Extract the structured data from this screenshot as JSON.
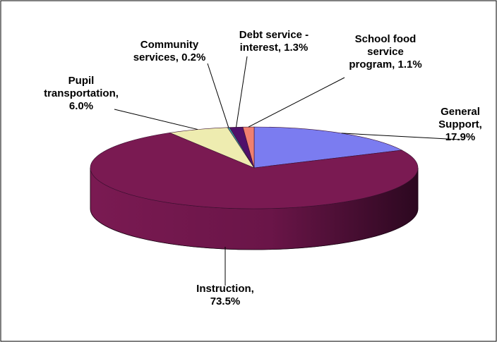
{
  "chart_data": {
    "type": "pie",
    "title": "",
    "slices": [
      {
        "label_lines": [
          "General",
          "Support,",
          "17.9%"
        ],
        "value": 17.9,
        "color": "#7b7cf0"
      },
      {
        "label_lines": [
          "Instruction,",
          "73.5%"
        ],
        "value": 73.5,
        "color": "#7a1a52"
      },
      {
        "label_lines": [
          "Pupil",
          "transportation,",
          "6.0%"
        ],
        "value": 6.0,
        "color": "#eeecb0"
      },
      {
        "label_lines": [
          "Community",
          "services, 0.2%"
        ],
        "value": 0.2,
        "color": "#33a2a8"
      },
      {
        "label_lines": [
          "Debt service -",
          "interest, 1.3%"
        ],
        "value": 1.3,
        "color": "#50106a"
      },
      {
        "label_lines": [
          "School food",
          "service",
          "program, 1.1%"
        ],
        "value": 1.1,
        "color": "#f08070"
      }
    ]
  }
}
